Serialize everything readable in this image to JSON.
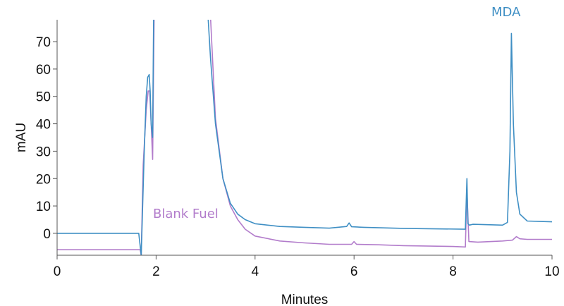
{
  "chart_data": {
    "type": "line",
    "xlabel": "Minutes",
    "ylabel": "mAU",
    "xlim": [
      0,
      10
    ],
    "ylim": [
      -8,
      78
    ],
    "x_ticks": [
      0,
      2,
      4,
      6,
      8,
      10
    ],
    "y_ticks": [
      0,
      10,
      20,
      30,
      40,
      50,
      60,
      70
    ],
    "grid": false,
    "legend": "none",
    "series": [
      {
        "name": "MDA",
        "color": "#3f8fc4",
        "x": [
          0,
          1.65,
          1.7,
          1.76,
          1.8,
          1.83,
          1.86,
          1.88,
          1.9,
          1.93,
          1.95,
          2.0,
          3.05,
          3.1,
          3.2,
          3.35,
          3.5,
          3.65,
          3.8,
          4.0,
          4.5,
          5.0,
          5.5,
          5.85,
          5.9,
          5.95,
          6.2,
          7.0,
          8.25,
          8.28,
          8.3,
          8.33,
          8.4,
          9.0,
          9.1,
          9.15,
          9.18,
          9.22,
          9.28,
          9.35,
          9.5,
          10.0
        ],
        "y": [
          0,
          0,
          -8,
          30,
          50,
          57,
          58,
          52,
          40,
          35,
          79,
          79,
          79,
          64,
          40,
          20,
          11,
          7,
          5,
          3.5,
          2.5,
          2.2,
          1.9,
          2.5,
          3.8,
          2.4,
          2.2,
          1.8,
          1.5,
          20,
          3.5,
          3,
          3.3,
          3,
          4,
          30,
          73,
          40,
          15,
          7,
          4.5,
          4.2
        ]
      },
      {
        "name": "Blank Fuel",
        "color": "#b27ccb",
        "x": [
          0,
          1.68,
          1.7,
          1.74,
          1.8,
          1.84,
          1.87,
          1.9,
          1.93,
          1.96,
          2.0,
          3.1,
          3.2,
          3.35,
          3.5,
          3.65,
          3.8,
          4.0,
          4.5,
          5.0,
          5.5,
          5.95,
          6.0,
          6.05,
          6.5,
          7.0,
          8.0,
          8.25,
          8.28,
          8.32,
          8.5,
          9.0,
          9.2,
          9.28,
          9.35,
          9.5,
          10.0
        ],
        "y": [
          -6,
          -6,
          -8,
          25,
          45,
          52,
          52,
          40,
          27,
          79,
          79,
          79,
          42,
          20,
          10,
          5,
          1.5,
          -1,
          -2.8,
          -3.5,
          -4,
          -4,
          -3,
          -4,
          -4.2,
          -4.5,
          -4.8,
          -5,
          16,
          -3,
          -3.2,
          -2.8,
          -2.5,
          -1.2,
          -2,
          -2.2,
          -2.2
        ]
      }
    ],
    "annotations": [
      {
        "text": "MDA",
        "color": "#3f8fc4"
      },
      {
        "text": "Blank Fuel",
        "color": "#b27ccb"
      }
    ]
  }
}
